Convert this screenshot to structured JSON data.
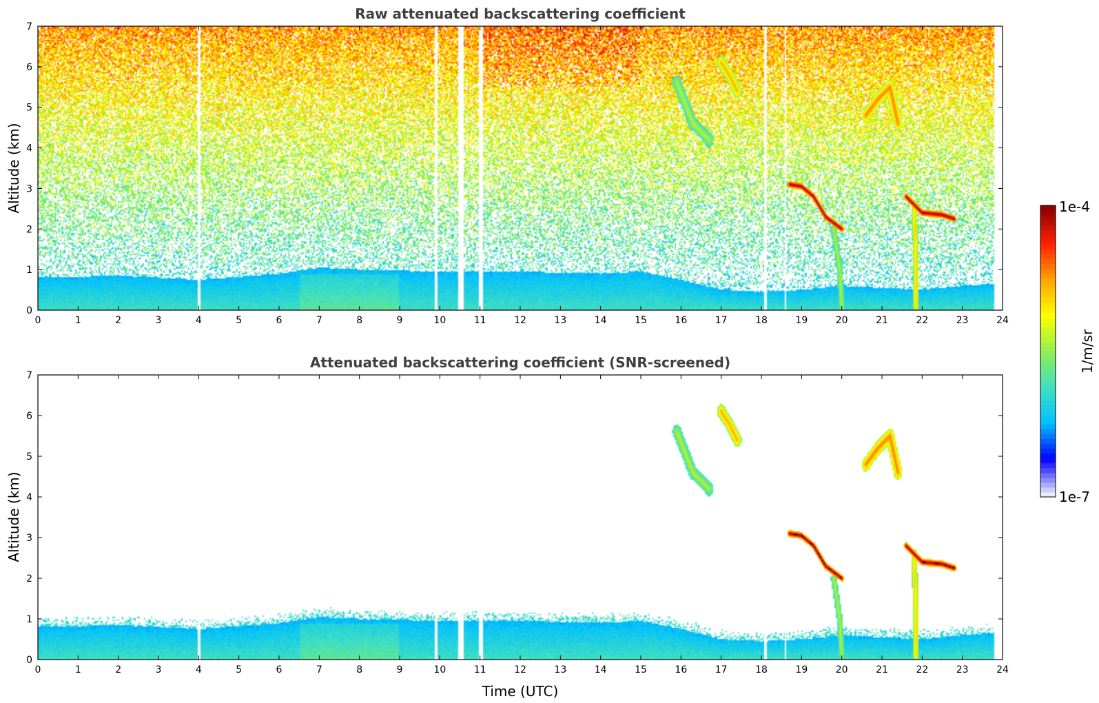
{
  "chart_data": [
    {
      "type": "heatmap",
      "title": "Raw attenuated backscattering coefficient",
      "xlabel": "",
      "ylabel": "Altitude (km)",
      "xlim": [
        0,
        24
      ],
      "ylim": [
        0,
        7
      ],
      "xticks": [
        "0",
        "1",
        "2",
        "3",
        "4",
        "5",
        "6",
        "7",
        "8",
        "9",
        "10",
        "11",
        "12",
        "13",
        "14",
        "15",
        "16",
        "17",
        "18",
        "19",
        "20",
        "21",
        "22",
        "23",
        "24"
      ],
      "yticks": [
        "0",
        "1",
        "2",
        "3",
        "4",
        "5",
        "6",
        "7"
      ],
      "boundary_layer_top_km": [
        [
          0,
          0.8
        ],
        [
          2,
          0.85
        ],
        [
          4,
          0.75
        ],
        [
          6,
          0.9
        ],
        [
          7,
          1.05
        ],
        [
          8,
          1.0
        ],
        [
          10,
          0.95
        ],
        [
          12,
          0.95
        ],
        [
          14,
          0.9
        ],
        [
          15,
          0.95
        ],
        [
          16,
          0.75
        ],
        [
          17,
          0.5
        ],
        [
          18,
          0.45
        ],
        [
          19,
          0.5
        ],
        [
          20,
          0.6
        ],
        [
          21,
          0.55
        ],
        [
          22,
          0.5
        ],
        [
          23,
          0.6
        ],
        [
          23.8,
          0.65
        ]
      ],
      "features": [
        {
          "name": "cloud-layer",
          "points": [
            [
              18.7,
              3.1
            ],
            [
              19.0,
              3.05
            ],
            [
              19.3,
              2.8
            ],
            [
              19.6,
              2.3
            ],
            [
              20.0,
              2.0
            ]
          ],
          "level": 1.0
        },
        {
          "name": "cloud-layer",
          "points": [
            [
              21.6,
              2.8
            ],
            [
              22.0,
              2.4
            ],
            [
              22.5,
              2.35
            ],
            [
              22.8,
              2.25
            ]
          ],
          "level": 1.0
        },
        {
          "name": "virga",
          "points": [
            [
              19.8,
              2.0
            ],
            [
              19.95,
              1.0
            ],
            [
              20.0,
              0.1
            ]
          ],
          "level": 0.55
        },
        {
          "name": "virga",
          "points": [
            [
              21.8,
              2.6
            ],
            [
              21.85,
              1.2
            ],
            [
              21.85,
              0.1
            ]
          ],
          "level": 0.7
        },
        {
          "name": "cirrus",
          "points": [
            [
              20.6,
              4.8
            ],
            [
              20.9,
              5.2
            ],
            [
              21.2,
              5.5
            ],
            [
              21.4,
              4.6
            ]
          ],
          "level": 0.8
        },
        {
          "name": "cirrus",
          "points": [
            [
              17.0,
              6.1
            ],
            [
              17.2,
              5.8
            ],
            [
              17.4,
              5.4
            ]
          ],
          "level": 0.75
        },
        {
          "name": "thin-cloud",
          "points": [
            [
              15.9,
              5.6
            ],
            [
              16.3,
              4.6
            ],
            [
              16.7,
              4.2
            ]
          ],
          "level": 0.55
        }
      ]
    },
    {
      "type": "heatmap",
      "title": "Attenuated backscattering coefficient (SNR-screened)",
      "xlabel": "Time (UTC)",
      "ylabel": "Altitude (km)",
      "xlim": [
        0,
        24
      ],
      "ylim": [
        0,
        7
      ],
      "xticks": [
        "0",
        "1",
        "2",
        "3",
        "4",
        "5",
        "6",
        "7",
        "8",
        "9",
        "10",
        "11",
        "12",
        "13",
        "14",
        "15",
        "16",
        "17",
        "18",
        "19",
        "20",
        "21",
        "22",
        "23",
        "24"
      ],
      "yticks": [
        "0",
        "1",
        "2",
        "3",
        "4",
        "5",
        "6",
        "7"
      ]
    }
  ],
  "colorbar": {
    "min_label": "1e-7",
    "max_label": "1e-4",
    "unit_label": "1/m/sr",
    "colors": [
      "#ececff",
      "#0000ff",
      "#00bfff",
      "#40e0c0",
      "#90ee50",
      "#ffff00",
      "#ffa500",
      "#ff2000",
      "#8b0000"
    ]
  },
  "colors": {
    "title": "#404040",
    "mask": "#ffffff",
    "saturated": "#000000"
  }
}
